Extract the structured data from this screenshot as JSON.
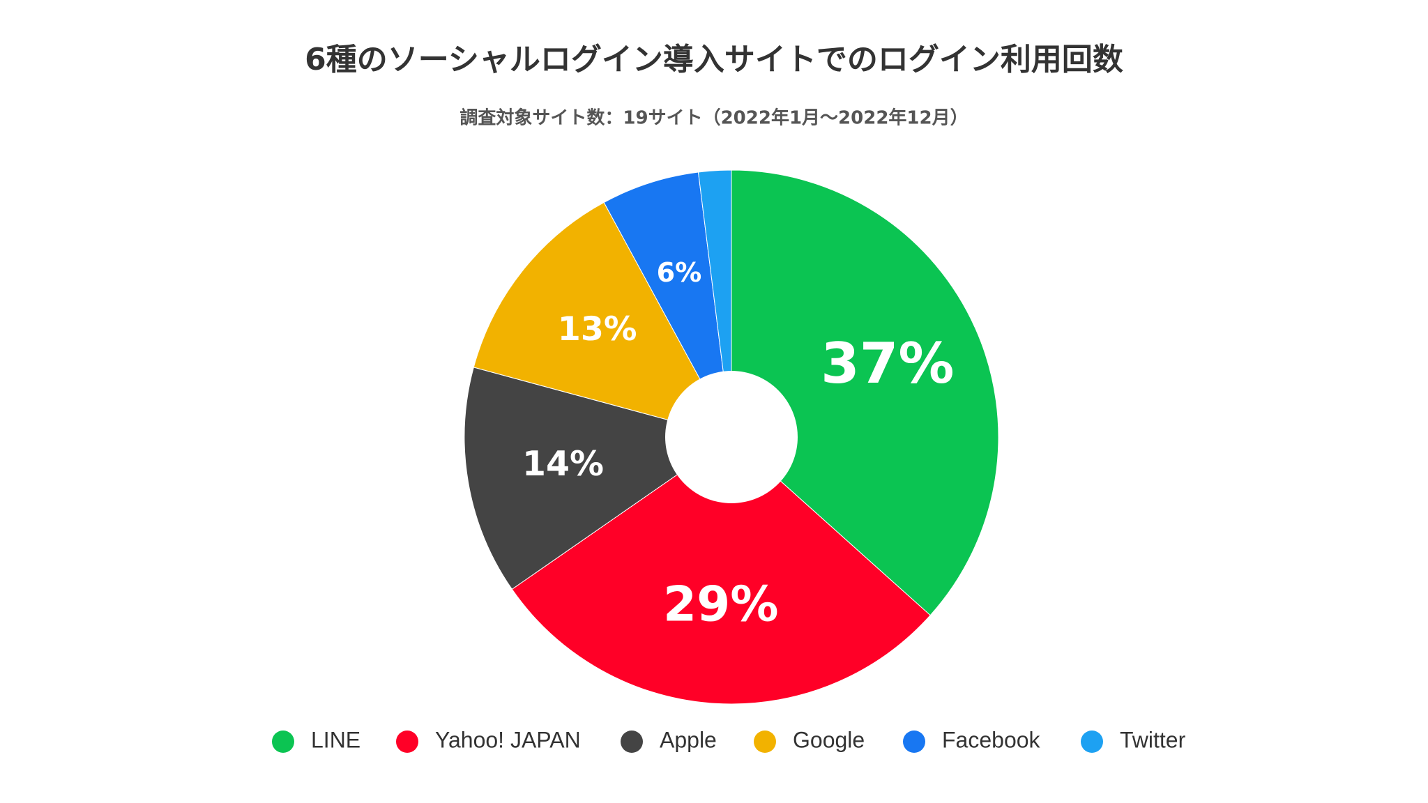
{
  "chart_data": {
    "type": "pie",
    "title": "6種のソーシャルログイン導入サイトでのログイン利用回数",
    "subtitle": "調査対象サイト数：19サイト（2022年1月〜2022年12月）",
    "categories": [
      "LINE",
      "Yahoo! JAPAN",
      "Apple",
      "Google",
      "Facebook",
      "Twitter"
    ],
    "values": [
      37,
      29,
      14,
      13,
      6,
      2
    ],
    "value_labels": [
      "37%",
      "29%",
      "14%",
      "13%",
      "6%",
      null
    ],
    "colors": [
      "#0bc452",
      "#ff0027",
      "#444444",
      "#f2b200",
      "#1877f2",
      "#1da1f2"
    ],
    "donut": true,
    "legend": "bottom"
  }
}
